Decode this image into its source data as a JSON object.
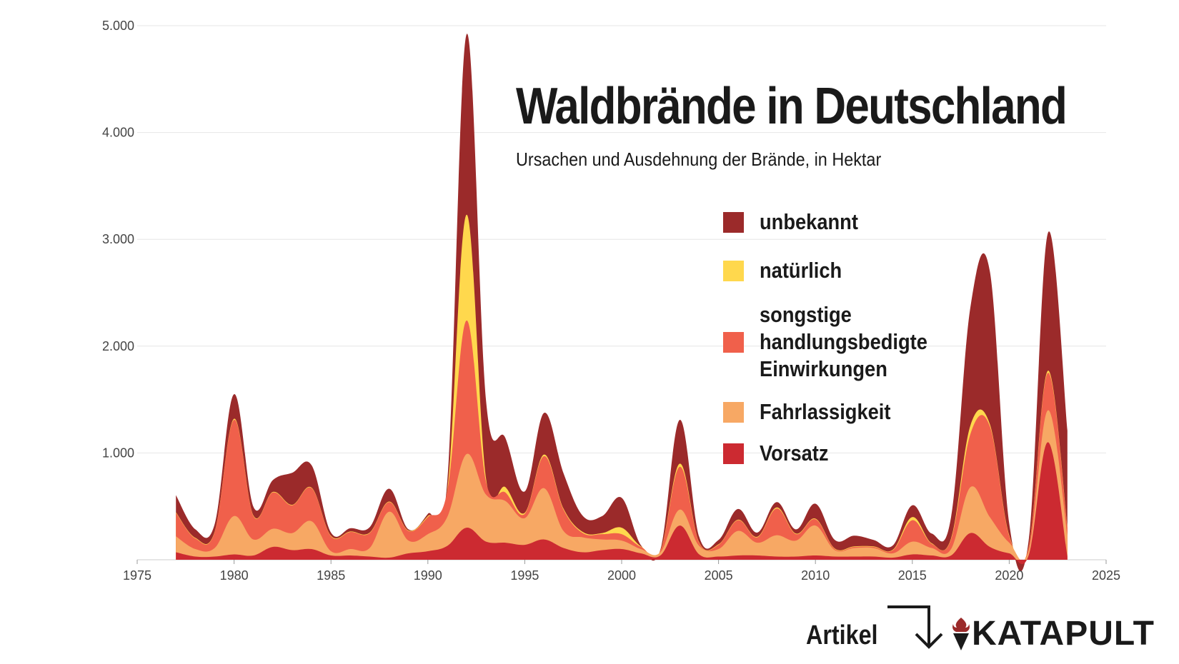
{
  "title": "Waldbrände in Deutschland",
  "subtitle": "Ursachen und Ausdehnung der Brände, in Hektar",
  "artikel_label": "Artikel",
  "logo_text": "KATAPULT",
  "colors": {
    "unbekannt": "#9b2a2a",
    "natuerlich": "#ffd84d",
    "sonstige": "#f0604b",
    "fahrlaessigkeit": "#f7a864",
    "vorsatz": "#cc2a31",
    "grid": "#e6e6e6"
  },
  "chart_data": {
    "type": "area",
    "stacked": true,
    "title": "Waldbrände in Deutschland",
    "subtitle": "Ursachen und Ausdehnung der Brände, in Hektar",
    "xlabel": "",
    "ylabel": "",
    "xlim": [
      1975,
      2025
    ],
    "ylim": [
      0,
      5000
    ],
    "x_ticks": [
      "1975",
      "1980",
      "1985",
      "1990",
      "1995",
      "2000",
      "2005",
      "2010",
      "2015",
      "2020",
      "2025"
    ],
    "y_ticks": [
      "1.000",
      "2.000",
      "3.000",
      "4.000",
      "5.000"
    ],
    "grid": true,
    "legend_position": "right",
    "x": [
      1977,
      1978,
      1979,
      1980,
      1981,
      1982,
      1983,
      1984,
      1985,
      1986,
      1987,
      1988,
      1989,
      1990,
      1991,
      1992,
      1993,
      1994,
      1995,
      1996,
      1997,
      1998,
      1999,
      2000,
      2001,
      2002,
      2003,
      2004,
      2005,
      2006,
      2007,
      2008,
      2009,
      2010,
      2011,
      2012,
      2013,
      2014,
      2015,
      2016,
      2017,
      2018,
      2019,
      2020,
      2021,
      2022,
      2023
    ],
    "series": [
      {
        "name": "Vorsatz",
        "key": "vorsatz",
        "values": [
          70,
          30,
          30,
          50,
          40,
          120,
          90,
          100,
          40,
          40,
          30,
          20,
          60,
          80,
          130,
          300,
          170,
          160,
          140,
          190,
          110,
          70,
          90,
          100,
          60,
          40,
          320,
          50,
          30,
          40,
          40,
          30,
          30,
          40,
          30,
          30,
          30,
          20,
          50,
          40,
          40,
          250,
          120,
          60,
          40,
          1100,
          30
        ]
      },
      {
        "name": "Fahrlassigkeit",
        "key": "fahrlaessigkeit",
        "values": [
          150,
          70,
          80,
          360,
          150,
          170,
          160,
          260,
          40,
          60,
          80,
          430,
          120,
          160,
          270,
          690,
          440,
          390,
          250,
          480,
          160,
          140,
          100,
          80,
          40,
          30,
          150,
          80,
          70,
          230,
          120,
          200,
          150,
          280,
          60,
          80,
          80,
          40,
          120,
          70,
          60,
          430,
          280,
          100,
          40,
          300,
          200
        ]
      },
      {
        "name": "songstige\nhandlungsbedigte\nEinwirkungen",
        "key": "sonstige",
        "values": [
          220,
          100,
          150,
          900,
          220,
          340,
          260,
          310,
          140,
          160,
          140,
          90,
          90,
          160,
          240,
          1250,
          120,
          80,
          40,
          300,
          200,
          40,
          50,
          60,
          20,
          10,
          400,
          30,
          40,
          100,
          50,
          250,
          60,
          60,
          10,
          10,
          10,
          30,
          200,
          40,
          90,
          500,
          850,
          60,
          30,
          350,
          70
        ]
      },
      {
        "name": "natürlich",
        "key": "natuerlich",
        "values": [
          5,
          5,
          5,
          10,
          5,
          5,
          5,
          5,
          5,
          5,
          5,
          5,
          5,
          10,
          10,
          990,
          30,
          50,
          10,
          15,
          10,
          10,
          10,
          60,
          5,
          5,
          30,
          5,
          5,
          5,
          5,
          10,
          5,
          5,
          5,
          5,
          5,
          5,
          30,
          5,
          10,
          80,
          20,
          10,
          5,
          20,
          10
        ]
      },
      {
        "name": "unbekannt",
        "key": "unbekannt",
        "values": [
          160,
          80,
          70,
          230,
          80,
          110,
          300,
          210,
          30,
          30,
          50,
          120,
          10,
          20,
          80,
          1690,
          730,
          460,
          200,
          390,
          330,
          150,
          160,
          280,
          10,
          10,
          410,
          50,
          40,
          100,
          40,
          50,
          40,
          140,
          80,
          100,
          60,
          40,
          110,
          90,
          200,
          1110,
          1430,
          110,
          60,
          1290,
          900
        ]
      }
    ]
  }
}
